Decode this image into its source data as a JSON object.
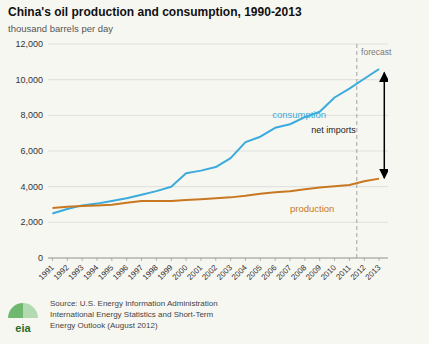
{
  "chart_data": {
    "type": "line",
    "title": "China's oil production and consumption, 1990-2013",
    "y_label": "thousand barrels per day",
    "x": [
      1991,
      1992,
      1993,
      1994,
      1995,
      1996,
      1997,
      1998,
      1999,
      2000,
      2001,
      2002,
      2003,
      2004,
      2005,
      2006,
      2007,
      2008,
      2009,
      2010,
      2011,
      2012,
      2013
    ],
    "series": [
      {
        "name": "consumption",
        "color": "#3aabdc",
        "label_x": 2005.8,
        "label_y": 7700,
        "values": [
          2500,
          2750,
          2950,
          3050,
          3200,
          3350,
          3550,
          3750,
          4000,
          4750,
          4900,
          5100,
          5600,
          6500,
          6800,
          7300,
          7500,
          7900,
          8200,
          9000,
          9500,
          10050,
          10600
        ]
      },
      {
        "name": "production",
        "color": "#c87820",
        "label_x": 2007.0,
        "label_y": 3150,
        "values": [
          2800,
          2870,
          2920,
          2950,
          2980,
          3100,
          3200,
          3200,
          3190,
          3250,
          3300,
          3350,
          3400,
          3490,
          3600,
          3680,
          3740,
          3850,
          3950,
          4020,
          4090,
          4300,
          4450
        ]
      }
    ],
    "xlim": [
      1990.7,
      2013.6
    ],
    "xticks": [
      1991,
      1992,
      1993,
      1994,
      1995,
      1996,
      1997,
      1998,
      1999,
      2000,
      2001,
      2002,
      2003,
      2004,
      2005,
      2006,
      2007,
      2008,
      2009,
      2010,
      2011,
      2012,
      2013
    ],
    "ylim": [
      0,
      12000
    ],
    "yticks": [
      0,
      {
        "value": 2000,
        "label": "2,000"
      },
      {
        "value": 4000,
        "label": "4,000"
      },
      {
        "value": 6000,
        "label": "6,000"
      },
      {
        "value": 8000,
        "label": "8,000"
      },
      {
        "value": 10000,
        "label": "10,000"
      },
      {
        "value": 12000,
        "label": "12,000"
      }
    ],
    "grid": true,
    "annotations": [
      {
        "type": "vline",
        "x": 2011.5
      },
      {
        "type": "text",
        "text": "forecast",
        "x": 2011.65,
        "y": 11850
      },
      {
        "type": "text",
        "text": "net imports",
        "x": 2011.7,
        "y": 7200
      },
      {
        "type": "arrow",
        "x": 2013.35,
        "y_from": 10400,
        "y_to": 4480
      }
    ],
    "source": [
      "Source: U.S. Energy Information Administration",
      "International Energy Statistics and Short-Term",
      "Energy Outlook (August 2012)"
    ],
    "logo": "eia"
  }
}
